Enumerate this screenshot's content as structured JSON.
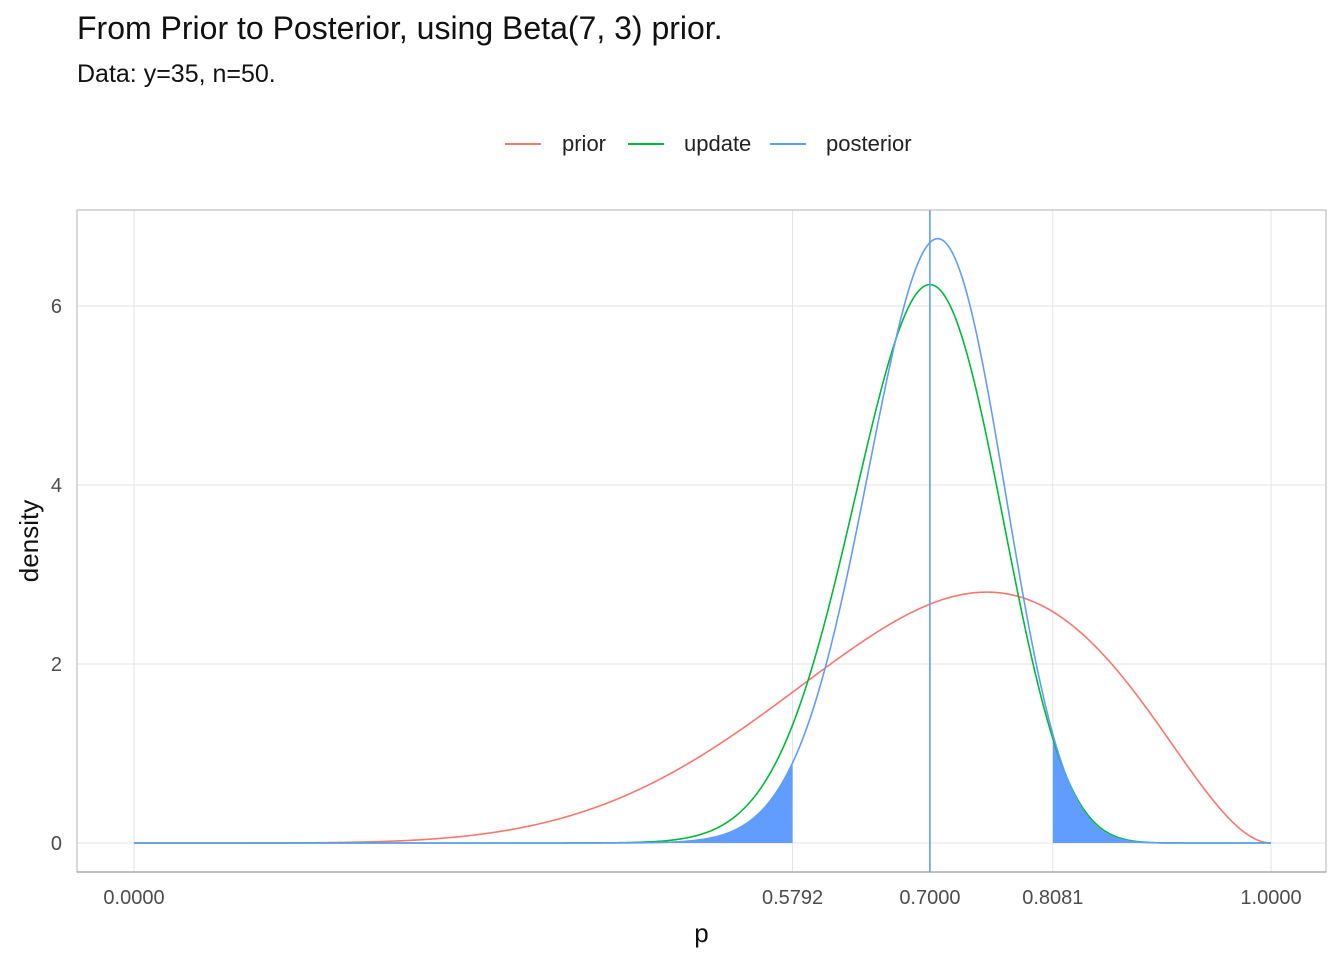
{
  "title": "From Prior to Posterior, using Beta(7, 3) prior.",
  "subtitle": "Data: y=35, n=50.",
  "legend": [
    {
      "name": "prior",
      "color": "#F8766D"
    },
    {
      "name": "update",
      "color": "#00BA38"
    },
    {
      "name": "posterior",
      "color": "#619CFF"
    }
  ],
  "chart_data": {
    "type": "line",
    "xlabel": "p",
    "ylabel": "density",
    "xlim": [
      0,
      1
    ],
    "ylim": [
      0,
      7
    ],
    "x_ticks": [
      "0.0000",
      "0.5792",
      "0.7000",
      "0.8081",
      "1.0000"
    ],
    "x_tick_values": [
      0,
      0.5792,
      0.7,
      0.8081,
      1
    ],
    "y_ticks": [
      0,
      2,
      4,
      6
    ],
    "grid": true,
    "legend_position": "top",
    "series": [
      {
        "name": "prior",
        "distribution": "Beta(7, 3)",
        "color": "#F8766D"
      },
      {
        "name": "update",
        "distribution": "Beta(36, 16)",
        "color": "#00BA38"
      },
      {
        "name": "posterior",
        "distribution": "Beta(42, 18)",
        "color": "#619CFF"
      }
    ],
    "vline": {
      "x": 0.7,
      "color": "#619CFF"
    },
    "shaded_tails": {
      "series": "posterior",
      "lower": 0.5792,
      "upper": 0.8081,
      "color": "#619CFF"
    }
  }
}
